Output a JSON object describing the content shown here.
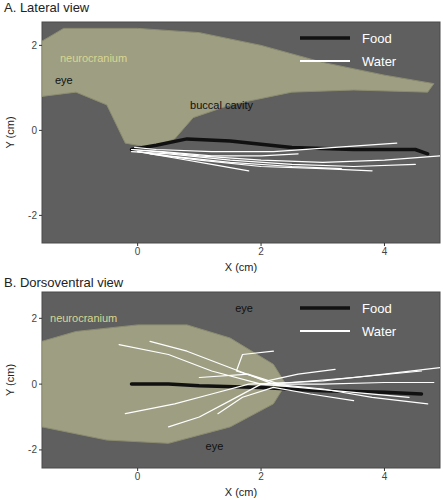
{
  "chart_data": [
    {
      "type": "line",
      "title": "A. Lateral view",
      "x_label": "X (cm)",
      "y_label": "Y (cm)",
      "xlim": [
        -1.55,
        4.9
      ],
      "ylim": [
        -2.65,
        2.55
      ],
      "xticks": [
        0,
        2,
        4
      ],
      "yticks": [
        -2,
        0,
        2
      ],
      "grid": false,
      "legend": "upper right",
      "annotations": [
        {
          "text": "neurocranium",
          "x": -1.26,
          "y": 1.6,
          "color": "#d9d78f"
        },
        {
          "text": "eye",
          "x": -1.34,
          "y": 1.1,
          "color": "#111111"
        },
        {
          "text": "buccal cavity",
          "x": 0.85,
          "y": 0.5,
          "color": "#111111"
        }
      ],
      "series": [
        {
          "name": "Food",
          "color": "#111111",
          "line_style": "thick",
          "x": [
            -0.1,
            0.3,
            0.8,
            1.5,
            2.5,
            3.5,
            4.5,
            4.7
          ],
          "values": [
            -0.45,
            -0.35,
            -0.2,
            -0.25,
            -0.4,
            -0.45,
            -0.45,
            -0.55
          ]
        },
        {
          "name": "Water",
          "color": "#ffffff",
          "line_style": "solid",
          "x": [
            4.9,
            4,
            3,
            2,
            1,
            0.3,
            -0.1
          ],
          "values": [
            -0.6,
            -0.7,
            -0.75,
            -0.7,
            -0.6,
            -0.5,
            -0.45
          ]
        },
        {
          "name": "Water",
          "color": "#ffffff",
          "line_style": "solid",
          "x": [
            4.5,
            3.5,
            2.5,
            1.5,
            0.5,
            -0.1
          ],
          "values": [
            -0.8,
            -0.85,
            -0.8,
            -0.7,
            -0.55,
            -0.5
          ]
        },
        {
          "name": "Water",
          "color": "#ffffff",
          "line_style": "solid",
          "x": [
            3.3,
            2.5,
            1.5,
            0.5,
            0
          ],
          "values": [
            -0.9,
            -0.85,
            -0.75,
            -0.6,
            -0.5
          ]
        },
        {
          "name": "Water",
          "color": "#ffffff",
          "line_style": "solid",
          "x": [
            2.6,
            2,
            1.2,
            0.4,
            -0.1
          ],
          "values": [
            -0.55,
            -0.6,
            -0.6,
            -0.5,
            -0.45
          ]
        },
        {
          "name": "Water",
          "color": "#ffffff",
          "line_style": "solid",
          "x": [
            4.2,
            3.2,
            2.2,
            1.2,
            0.3,
            -0.05
          ],
          "values": [
            -0.3,
            -0.4,
            -0.5,
            -0.5,
            -0.45,
            -0.4
          ]
        },
        {
          "name": "Water",
          "color": "#ffffff",
          "line_style": "solid",
          "x": [
            1.8,
            1.2,
            0.6,
            0
          ],
          "values": [
            -0.95,
            -0.8,
            -0.65,
            -0.5
          ]
        },
        {
          "name": "Water",
          "color": "#ffffff",
          "line_style": "solid",
          "x": [
            3.8,
            3,
            2,
            1,
            0.2
          ],
          "values": [
            -0.95,
            -0.9,
            -0.85,
            -0.7,
            -0.55
          ]
        }
      ]
    },
    {
      "type": "line",
      "title": "B. Dorsoventral view",
      "x_label": "X (cm)",
      "y_label": "Y (cm)",
      "xlim": [
        -1.55,
        4.9
      ],
      "ylim": [
        -2.55,
        2.8
      ],
      "xticks": [
        0,
        2,
        4
      ],
      "yticks": [
        -2,
        0,
        2
      ],
      "grid": false,
      "legend": "upper right",
      "annotations": [
        {
          "text": "neurocranium",
          "x": -1.42,
          "y": 1.9,
          "color": "#d9d78f"
        },
        {
          "text": "eye",
          "x": 1.58,
          "y": 2.2,
          "color": "#111111"
        },
        {
          "text": "eye",
          "x": 1.1,
          "y": -2.0,
          "color": "#111111"
        }
      ],
      "series": [
        {
          "name": "Food",
          "color": "#111111",
          "line_style": "thick",
          "x": [
            -0.1,
            0.5,
            1,
            2,
            3,
            4,
            4.6
          ],
          "values": [
            0,
            0,
            -0.05,
            -0.1,
            -0.2,
            -0.25,
            -0.3
          ]
        },
        {
          "name": "Water",
          "color": "#ffffff",
          "line_style": "solid",
          "x": [
            4.9,
            4,
            3,
            2,
            1.2,
            0.5,
            -0.3
          ],
          "values": [
            0.5,
            0.3,
            0.1,
            0,
            0.4,
            0.9,
            1.2
          ]
        },
        {
          "name": "Water",
          "color": "#ffffff",
          "line_style": "solid",
          "x": [
            4.7,
            3.8,
            3,
            2.2,
            1.5,
            0.8,
            0.2
          ],
          "values": [
            -0.6,
            -0.4,
            -0.15,
            0,
            0.5,
            1.0,
            1.3
          ]
        },
        {
          "name": "Water",
          "color": "#ffffff",
          "line_style": "solid",
          "x": [
            4.6,
            3.5,
            2.5,
            1.8,
            1.2,
            0.6,
            -0.2
          ],
          "values": [
            0.4,
            0.2,
            0.05,
            0,
            -0.3,
            -0.6,
            -0.9
          ]
        },
        {
          "name": "Water",
          "color": "#ffffff",
          "line_style": "solid",
          "x": [
            4.4,
            3.5,
            2.6,
            2,
            1.5,
            1,
            0.5
          ],
          "values": [
            -0.4,
            -0.25,
            -0.1,
            0,
            -0.5,
            -1.0,
            -1.3
          ]
        },
        {
          "name": "Water",
          "color": "#ffffff",
          "line_style": "solid",
          "x": [
            3.2,
            2.6,
            2.1,
            1.6,
            1.7,
            2.2
          ],
          "values": [
            0.45,
            0.3,
            0.1,
            0.4,
            0.9,
            1.0
          ]
        },
        {
          "name": "Water",
          "color": "#ffffff",
          "line_style": "solid",
          "x": [
            3.5,
            2.8,
            2.2,
            1.7,
            1.3
          ],
          "values": [
            -0.5,
            -0.3,
            -0.1,
            -0.4,
            -0.9
          ]
        },
        {
          "name": "Water",
          "color": "#ffffff",
          "line_style": "solid",
          "x": [
            4.8,
            4,
            3,
            2.3,
            1.8,
            1.0
          ],
          "values": [
            0.05,
            0.05,
            0,
            0,
            0.3,
            0.2
          ]
        }
      ]
    }
  ]
}
